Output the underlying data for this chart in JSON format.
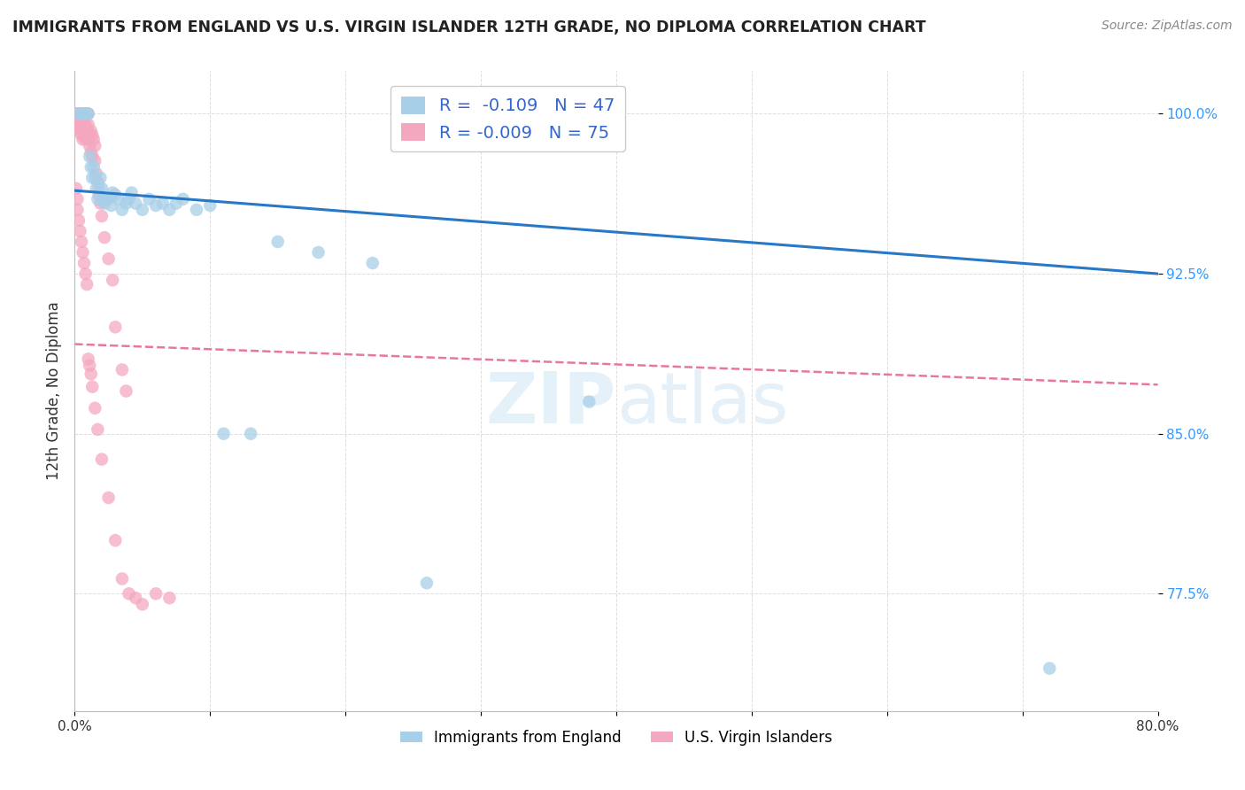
{
  "title": "IMMIGRANTS FROM ENGLAND VS U.S. VIRGIN ISLANDER 12TH GRADE, NO DIPLOMA CORRELATION CHART",
  "source": "Source: ZipAtlas.com",
  "ylabel": "12th Grade, No Diploma",
  "xlim": [
    0.0,
    0.8
  ],
  "ylim": [
    0.72,
    1.02
  ],
  "xticks": [
    0.0,
    0.1,
    0.2,
    0.3,
    0.4,
    0.5,
    0.6,
    0.7,
    0.8
  ],
  "xticklabels": [
    "0.0%",
    "",
    "",
    "",
    "",
    "",
    "",
    "",
    "80.0%"
  ],
  "yticks": [
    0.775,
    0.85,
    0.925,
    1.0
  ],
  "yticklabels": [
    "77.5%",
    "85.0%",
    "92.5%",
    "100.0%"
  ],
  "blue_color": "#a8cfe8",
  "pink_color": "#f4a8c0",
  "blue_line_color": "#2878c8",
  "pink_line_color": "#e87898",
  "legend_label_blue": "Immigrants from England",
  "legend_label_pink": "U.S. Virgin Islanders",
  "R_blue": -0.109,
  "N_blue": 47,
  "R_pink": -0.009,
  "N_pink": 75,
  "blue_scatter_x": [
    0.003,
    0.005,
    0.006,
    0.007,
    0.008,
    0.009,
    0.01,
    0.011,
    0.012,
    0.013,
    0.014,
    0.015,
    0.016,
    0.017,
    0.018,
    0.019,
    0.02,
    0.021,
    0.022,
    0.023,
    0.025,
    0.027,
    0.028,
    0.03,
    0.032,
    0.035,
    0.038,
    0.04,
    0.042,
    0.045,
    0.05,
    0.055,
    0.06,
    0.065,
    0.07,
    0.075,
    0.08,
    0.09,
    0.1,
    0.11,
    0.13,
    0.15,
    0.18,
    0.22,
    0.26,
    0.38,
    0.72
  ],
  "blue_scatter_y": [
    1.0,
    1.0,
    1.0,
    1.0,
    1.0,
    1.0,
    1.0,
    0.98,
    0.975,
    0.97,
    0.975,
    0.97,
    0.965,
    0.96,
    0.965,
    0.97,
    0.965,
    0.96,
    0.958,
    0.96,
    0.96,
    0.957,
    0.963,
    0.962,
    0.96,
    0.955,
    0.958,
    0.96,
    0.963,
    0.958,
    0.955,
    0.96,
    0.957,
    0.958,
    0.955,
    0.958,
    0.96,
    0.955,
    0.957,
    0.85,
    0.85,
    0.94,
    0.935,
    0.93,
    0.78,
    0.865,
    0.74
  ],
  "pink_scatter_x": [
    0.001,
    0.001,
    0.002,
    0.002,
    0.003,
    0.003,
    0.003,
    0.003,
    0.004,
    0.004,
    0.004,
    0.005,
    0.005,
    0.005,
    0.005,
    0.006,
    0.006,
    0.006,
    0.006,
    0.007,
    0.007,
    0.007,
    0.008,
    0.008,
    0.008,
    0.009,
    0.009,
    0.01,
    0.01,
    0.01,
    0.011,
    0.011,
    0.012,
    0.012,
    0.013,
    0.013,
    0.014,
    0.015,
    0.015,
    0.016,
    0.017,
    0.018,
    0.019,
    0.02,
    0.022,
    0.025,
    0.028,
    0.03,
    0.035,
    0.038,
    0.001,
    0.002,
    0.002,
    0.003,
    0.004,
    0.005,
    0.006,
    0.007,
    0.008,
    0.009,
    0.01,
    0.011,
    0.012,
    0.013,
    0.015,
    0.017,
    0.02,
    0.025,
    0.03,
    0.035,
    0.04,
    0.045,
    0.05,
    0.06,
    0.07
  ],
  "pink_scatter_y": [
    1.0,
    0.998,
    1.0,
    0.995,
    1.0,
    0.998,
    0.995,
    0.992,
    1.0,
    0.998,
    0.993,
    1.0,
    0.997,
    0.993,
    0.99,
    1.0,
    0.997,
    0.993,
    0.988,
    1.0,
    0.995,
    0.99,
    1.0,
    0.995,
    0.988,
    1.0,
    0.993,
    1.0,
    0.995,
    0.988,
    0.99,
    0.985,
    0.992,
    0.982,
    0.99,
    0.98,
    0.988,
    0.985,
    0.978,
    0.972,
    0.968,
    0.962,
    0.958,
    0.952,
    0.942,
    0.932,
    0.922,
    0.9,
    0.88,
    0.87,
    0.965,
    0.96,
    0.955,
    0.95,
    0.945,
    0.94,
    0.935,
    0.93,
    0.925,
    0.92,
    0.885,
    0.882,
    0.878,
    0.872,
    0.862,
    0.852,
    0.838,
    0.82,
    0.8,
    0.782,
    0.775,
    0.773,
    0.77,
    0.775,
    0.773
  ],
  "watermark_zip": "ZIP",
  "watermark_atlas": "atlas",
  "background_color": "#ffffff",
  "grid_color": "#dddddd"
}
